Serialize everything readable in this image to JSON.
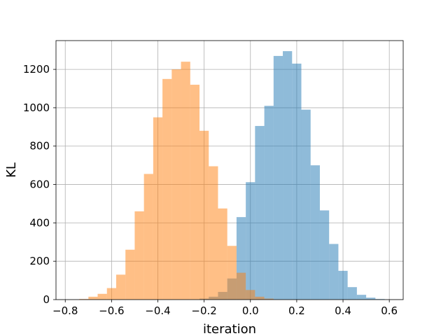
{
  "chart_data": {
    "type": "bar",
    "subtype": "histogram",
    "title": "",
    "xlabel": "iteration",
    "ylabel": "KL",
    "xlim": [
      -0.84,
      0.66
    ],
    "ylim": [
      0,
      1350
    ],
    "x_ticks": [
      -0.8,
      -0.6,
      -0.4,
      -0.2,
      0.0,
      0.2,
      0.4,
      0.6
    ],
    "x_tick_labels": [
      "−0.8",
      "−0.6",
      "−0.4",
      "−0.2",
      "0.0",
      "0.2",
      "0.4",
      "0.6"
    ],
    "y_ticks": [
      0,
      200,
      400,
      600,
      800,
      1000,
      1200
    ],
    "y_tick_labels": [
      "0",
      "200",
      "400",
      "600",
      "800",
      "1000",
      "1200"
    ],
    "grid": true,
    "legend": "none",
    "series": [
      {
        "color": "#1f77b4",
        "opacity": 0.5,
        "bin_width": 0.04,
        "bins": [
          {
            "x0": -0.22,
            "x1": -0.18,
            "count": 5
          },
          {
            "x0": -0.18,
            "x1": -0.14,
            "count": 15
          },
          {
            "x0": -0.14,
            "x1": -0.1,
            "count": 40
          },
          {
            "x0": -0.1,
            "x1": -0.06,
            "count": 110
          },
          {
            "x0": -0.06,
            "x1": -0.02,
            "count": 430
          },
          {
            "x0": -0.02,
            "x1": 0.02,
            "count": 612
          },
          {
            "x0": 0.02,
            "x1": 0.06,
            "count": 905
          },
          {
            "x0": 0.06,
            "x1": 0.1,
            "count": 1010
          },
          {
            "x0": 0.1,
            "x1": 0.14,
            "count": 1270
          },
          {
            "x0": 0.14,
            "x1": 0.18,
            "count": 1295
          },
          {
            "x0": 0.18,
            "x1": 0.22,
            "count": 1230
          },
          {
            "x0": 0.22,
            "x1": 0.26,
            "count": 990
          },
          {
            "x0": 0.26,
            "x1": 0.3,
            "count": 700
          },
          {
            "x0": 0.3,
            "x1": 0.34,
            "count": 465
          },
          {
            "x0": 0.34,
            "x1": 0.38,
            "count": 290
          },
          {
            "x0": 0.38,
            "x1": 0.42,
            "count": 150
          },
          {
            "x0": 0.42,
            "x1": 0.46,
            "count": 65
          },
          {
            "x0": 0.46,
            "x1": 0.5,
            "count": 25
          },
          {
            "x0": 0.5,
            "x1": 0.54,
            "count": 10
          },
          {
            "x0": 0.54,
            "x1": 0.58,
            "count": 3
          }
        ]
      },
      {
        "color": "#ff7f0e",
        "opacity": 0.5,
        "bin_width": 0.04,
        "bins": [
          {
            "x0": -0.74,
            "x1": -0.7,
            "count": 3
          },
          {
            "x0": -0.7,
            "x1": -0.66,
            "count": 15
          },
          {
            "x0": -0.66,
            "x1": -0.62,
            "count": 30
          },
          {
            "x0": -0.62,
            "x1": -0.58,
            "count": 60
          },
          {
            "x0": -0.58,
            "x1": -0.54,
            "count": 130
          },
          {
            "x0": -0.54,
            "x1": -0.5,
            "count": 260
          },
          {
            "x0": -0.5,
            "x1": -0.46,
            "count": 460
          },
          {
            "x0": -0.46,
            "x1": -0.42,
            "count": 655
          },
          {
            "x0": -0.42,
            "x1": -0.38,
            "count": 950
          },
          {
            "x0": -0.38,
            "x1": -0.34,
            "count": 1150
          },
          {
            "x0": -0.34,
            "x1": -0.3,
            "count": 1200
          },
          {
            "x0": -0.3,
            "x1": -0.26,
            "count": 1240
          },
          {
            "x0": -0.26,
            "x1": -0.22,
            "count": 1120
          },
          {
            "x0": -0.22,
            "x1": -0.18,
            "count": 880
          },
          {
            "x0": -0.18,
            "x1": -0.14,
            "count": 695
          },
          {
            "x0": -0.14,
            "x1": -0.1,
            "count": 475
          },
          {
            "x0": -0.1,
            "x1": -0.06,
            "count": 280
          },
          {
            "x0": -0.06,
            "x1": -0.02,
            "count": 140
          },
          {
            "x0": -0.02,
            "x1": 0.02,
            "count": 50
          },
          {
            "x0": 0.02,
            "x1": 0.06,
            "count": 15
          },
          {
            "x0": 0.06,
            "x1": 0.1,
            "count": 5
          }
        ]
      }
    ]
  }
}
